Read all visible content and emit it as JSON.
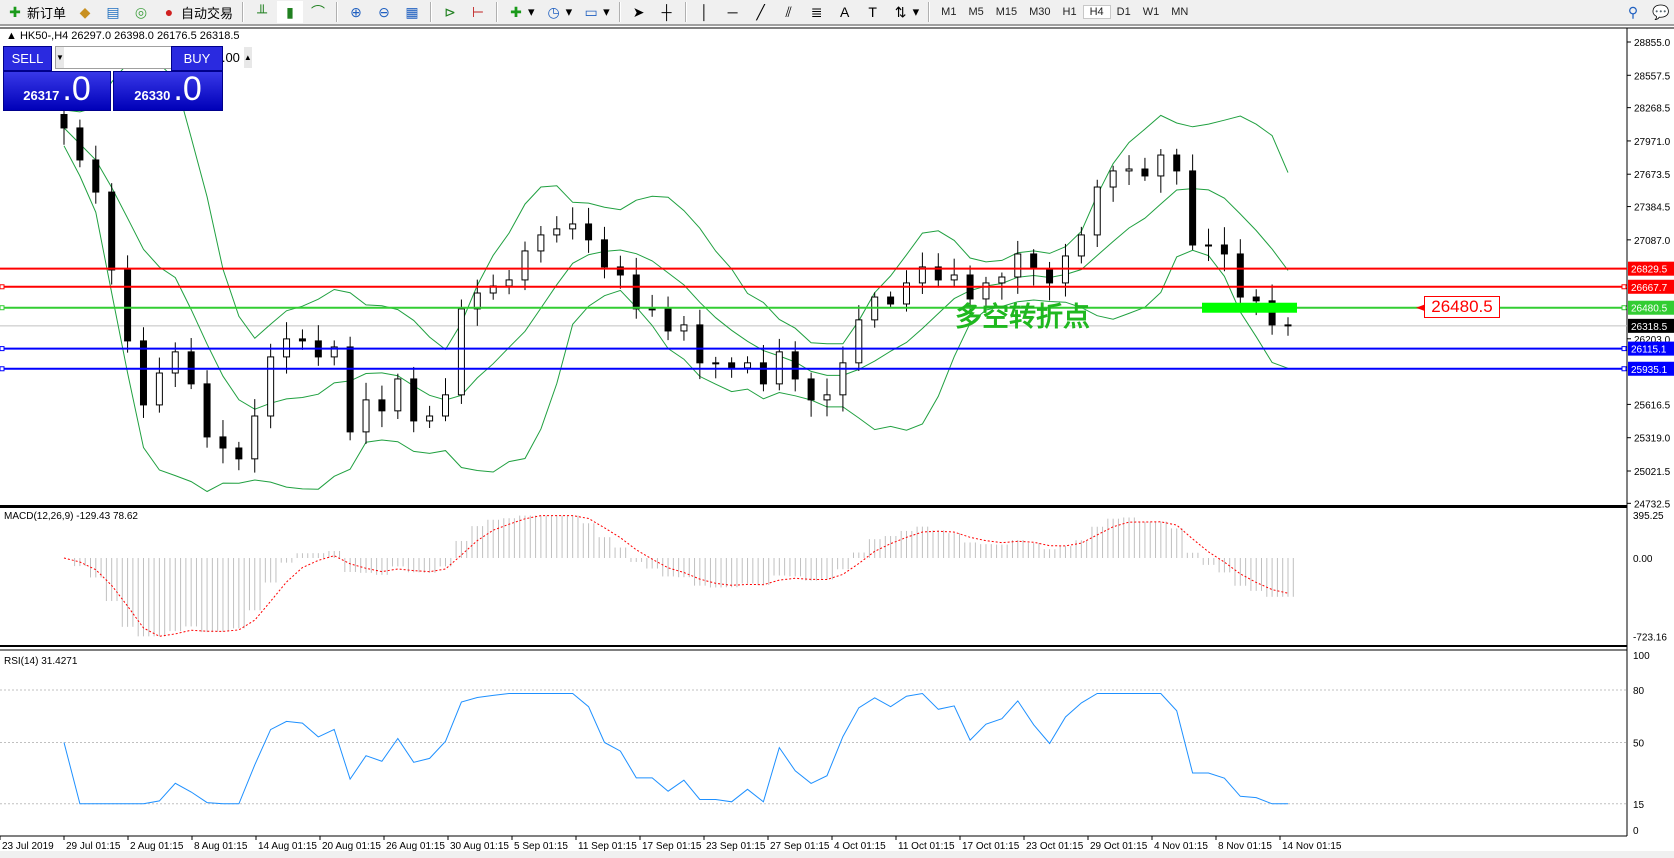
{
  "toolbar": {
    "new_order": "新订单",
    "auto_trading": "自动交易",
    "timeframes": [
      "M1",
      "M5",
      "M15",
      "M30",
      "H1",
      "H4",
      "D1",
      "W1",
      "MN"
    ],
    "active_timeframe": "H4"
  },
  "chart_header": {
    "text": "HK50-,H4  26297.0 26398.0 26176.5 26318.5"
  },
  "trade_panel": {
    "sell_label": "SELL",
    "buy_label": "BUY",
    "lot": "1.00",
    "sell_price_main": "26317",
    "sell_price_big": ".0",
    "buy_price_main": "26330",
    "buy_price_big": ".0"
  },
  "annotation": {
    "text": "多空转折点",
    "level_label": "26480.5",
    "color": "#1fb81f"
  },
  "price_axis": [
    "28855.0",
    "28557.5",
    "28268.5",
    "27971.0",
    "27673.5",
    "27384.5",
    "27087.0",
    "26203.0",
    "25616.5",
    "25319.0",
    "25021.5",
    "24732.5"
  ],
  "levels": [
    {
      "price": "26829.5",
      "color": "#ff0000"
    },
    {
      "price": "26667.7",
      "color": "#ff0000"
    },
    {
      "price": "26480.5",
      "color": "#32cd32"
    },
    {
      "price": "26115.1",
      "color": "#0000ff"
    },
    {
      "price": "25935.1",
      "color": "#0000ff"
    }
  ],
  "bid": {
    "price": "26318.5"
  },
  "macd": {
    "label": "MACD(12,26,9) -129.43 78.62",
    "axis": [
      "395.25",
      "0.00",
      "-723.16"
    ]
  },
  "rsi": {
    "label": "RSI(14) 31.4271",
    "axis": [
      "100",
      "80",
      "50",
      "15",
      "0"
    ]
  },
  "time_axis": [
    "23 Jul 2019",
    "29 Jul 01:15",
    "2 Aug 01:15",
    "8 Aug 01:15",
    "14 Aug 01:15",
    "20 Aug 01:15",
    "26 Aug 01:15",
    "30 Aug 01:15",
    "5 Sep 01:15",
    "11 Sep 01:15",
    "17 Sep 01:15",
    "23 Sep 01:15",
    "27 Sep 01:15",
    "4 Oct 01:15",
    "11 Oct 01:15",
    "17 Oct 01:15",
    "23 Oct 01:15",
    "29 Oct 01:15",
    "4 Nov 01:15",
    "8 Nov 01:15",
    "14 Nov 01:15"
  ],
  "chart_data": {
    "type": "candlestick",
    "symbol": "HK50-",
    "timeframe": "H4",
    "ylim": [
      24732.5,
      28855.0
    ],
    "closes": [
      28087,
      27801,
      27514,
      26818,
      26184,
      25612,
      25897,
      26086,
      25800,
      25326,
      25227,
      25130,
      25513,
      26041,
      26202,
      26184,
      26041,
      26130,
      25371,
      25657,
      25559,
      25844,
      25469,
      25513,
      25702,
      26470,
      26612,
      26675,
      26729,
      26988,
      27131,
      27185,
      27229,
      27087,
      26845,
      26773,
      26470,
      26470,
      26273,
      26327,
      25988,
      25988,
      25943,
      25988,
      25800,
      26086,
      25844,
      25657,
      25702,
      25988,
      26372,
      26576,
      26514,
      26702,
      26845,
      26729,
      26773,
      26559,
      26702,
      26755,
      26961,
      26827,
      26702,
      26943,
      27131,
      27559,
      27703,
      27720,
      27658,
      27845,
      27703,
      27041,
      27041,
      26961,
      26576,
      26542,
      26327,
      26318.5
    ],
    "indicators": [
      "Bollinger Bands",
      "MACD(12,26,9)",
      "RSI(14)"
    ],
    "colors": {
      "bands": "#20a040",
      "macd_hist": "#c0c0c0",
      "macd_signal": "#ff0000",
      "rsi": "#1e90ff"
    }
  }
}
